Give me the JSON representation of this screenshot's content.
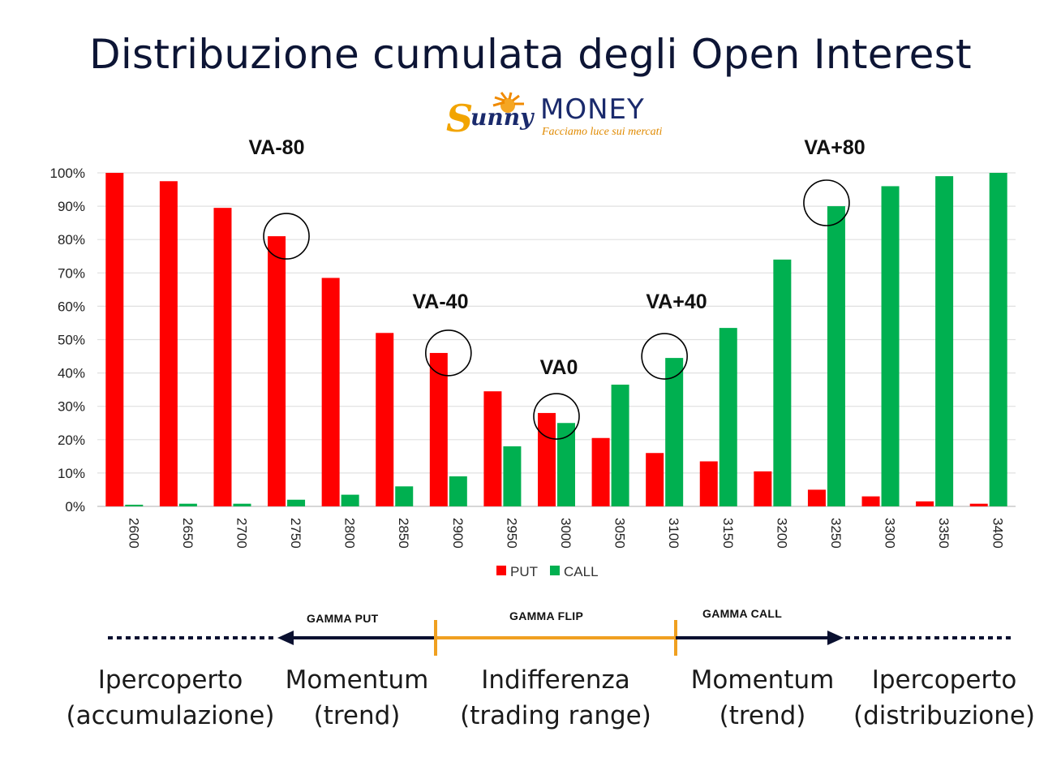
{
  "title": "Distribuzione cumulata degli Open Interest",
  "logo": {
    "brand_script": "unny",
    "brand_initial": "S",
    "brand_word": "MONEY",
    "tagline": "Facciamo luce sui mercati"
  },
  "colors": {
    "put": "#ff0000",
    "call": "#00b050",
    "title": "#0d1535",
    "arrow": "#0a1030",
    "flip": "#f0a020"
  },
  "chart_data": {
    "type": "bar",
    "categories": [
      "2600",
      "2650",
      "2700",
      "2750",
      "2800",
      "2850",
      "2900",
      "2950",
      "3000",
      "3050",
      "3100",
      "3150",
      "3200",
      "3250",
      "3300",
      "3350",
      "3400"
    ],
    "series": [
      {
        "name": "PUT",
        "color": "#ff0000",
        "values": [
          100,
          97.5,
          89.5,
          81,
          68.5,
          52,
          46,
          34.5,
          28,
          20.5,
          16,
          13.5,
          10.5,
          5,
          3,
          1.5,
          0.8
        ]
      },
      {
        "name": "CALL",
        "color": "#00b050",
        "values": [
          0.5,
          0.8,
          0.8,
          2,
          3.5,
          6,
          9,
          18,
          25,
          36.5,
          44.5,
          53.5,
          74,
          90,
          96,
          99,
          100
        ]
      }
    ],
    "ylim": [
      0,
      100
    ],
    "yticks": [
      "0%",
      "10%",
      "20%",
      "30%",
      "40%",
      "50%",
      "60%",
      "70%",
      "80%",
      "90%",
      "100%"
    ],
    "grid": true,
    "legend": "bottom",
    "annotations": [
      {
        "text": "VA-80",
        "category": "2750",
        "value": 81
      },
      {
        "text": "VA-40",
        "category": "2900",
        "value": 46
      },
      {
        "text": "VA0",
        "category": "3000",
        "value": 27
      },
      {
        "text": "VA+40",
        "category": "3100",
        "value": 45
      },
      {
        "text": "VA+80",
        "category": "3250",
        "value": 91
      }
    ]
  },
  "regimes": {
    "gamma_put": "GAMMA PUT",
    "gamma_flip": "GAMMA FLIP",
    "gamma_call": "GAMMA CALL",
    "labels": [
      {
        "line1": "Ipercoperto",
        "line2": "(accumulazione)"
      },
      {
        "line1": "Momentum",
        "line2": "(trend)"
      },
      {
        "line1": "Indifferenza",
        "line2": "(trading range)"
      },
      {
        "line1": "Momentum",
        "line2": "(trend)"
      },
      {
        "line1": "Ipercoperto",
        "line2": "(distribuzione)"
      }
    ]
  }
}
